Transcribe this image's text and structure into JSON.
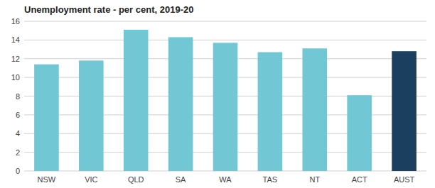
{
  "chart_data": {
    "type": "bar",
    "title": "Unemployment rate - per cent, 2019-20",
    "categories": [
      "NSW",
      "VIC",
      "QLD",
      "SA",
      "WA",
      "TAS",
      "NT",
      "ACT",
      "AUST"
    ],
    "values": [
      11.4,
      11.8,
      15.1,
      14.3,
      13.7,
      12.7,
      13.1,
      8.1,
      12.8
    ],
    "colors": [
      "#72c7d4",
      "#72c7d4",
      "#72c7d4",
      "#72c7d4",
      "#72c7d4",
      "#72c7d4",
      "#72c7d4",
      "#72c7d4",
      "#1b3f5e"
    ],
    "ylim": [
      0,
      16
    ],
    "yticks": [
      0,
      2,
      4,
      6,
      8,
      10,
      12,
      14,
      16
    ],
    "grid": true
  }
}
